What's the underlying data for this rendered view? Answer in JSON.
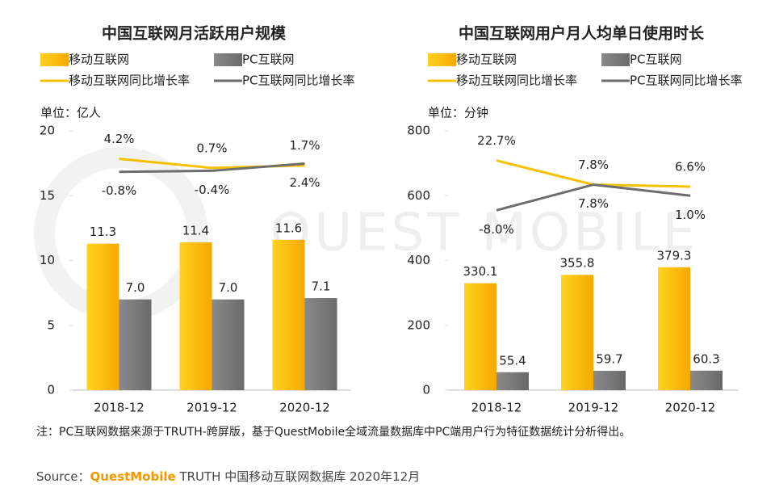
{
  "chart_data": [
    {
      "type": "bar",
      "title": "中国互联网月活跃用户规模",
      "unit": "单位：亿人",
      "categories": [
        "2018-12",
        "2019-12",
        "2020-12"
      ],
      "ylim": [
        0,
        20
      ],
      "yticks": [
        0,
        5,
        10,
        15,
        20
      ],
      "y2lim": [
        -85,
        15
      ],
      "series": [
        {
          "name": "移动互联网",
          "color": "#f5b800",
          "values": [
            11.3,
            11.4,
            11.6
          ],
          "value_labels": [
            "11.3",
            "11.4",
            "11.6"
          ]
        },
        {
          "name": "PC互联网",
          "color": "#7f7f7f",
          "values": [
            7.0,
            7.0,
            7.1
          ],
          "value_labels": [
            "7.0",
            "7.0",
            "7.1"
          ]
        },
        {
          "name": "移动互联网同比增长率",
          "type": "line",
          "axis": "y2",
          "color": "#f5c000",
          "values": [
            4.2,
            0.7,
            1.7
          ],
          "value_labels": [
            "4.2%",
            "0.7%",
            "1.7%"
          ]
        },
        {
          "name": "PC互联网同比增长率",
          "type": "line",
          "axis": "y2",
          "color": "#6d6d6d",
          "values": [
            -0.8,
            -0.4,
            2.4
          ],
          "value_labels": [
            "-0.8%",
            "-0.4%",
            "2.4%"
          ]
        }
      ]
    },
    {
      "type": "bar",
      "title": "中国互联网用户月人均单日使用时长",
      "unit": "单位：分钟",
      "categories": [
        "2018-12",
        "2019-12",
        "2020-12"
      ],
      "ylim": [
        0,
        800
      ],
      "yticks": [
        0,
        200,
        400,
        600,
        800
      ],
      "y2lim": [
        -119,
        41
      ],
      "series": [
        {
          "name": "移动互联网",
          "color": "#f5b800",
          "values": [
            330.1,
            355.8,
            379.3
          ]
        },
        {
          "name": "PC互联网",
          "color": "#7f7f7f",
          "values": [
            55.4,
            59.7,
            60.3
          ]
        },
        {
          "name": "移动互联网同比增长率",
          "type": "line",
          "axis": "y2",
          "color": "#f5c000",
          "values": [
            22.7,
            7.8,
            6.6
          ],
          "value_labels": [
            "22.7%",
            "7.8%",
            "6.6%"
          ]
        },
        {
          "name": "PC互联网同比增长率",
          "type": "line",
          "axis": "y2",
          "color": "#6d6d6d",
          "values": [
            -8.0,
            7.8,
            1.0
          ],
          "value_labels": [
            "-8.0%",
            "7.8%",
            "1.0%"
          ]
        }
      ]
    }
  ],
  "watermark": "QUEST MOBILE",
  "note": "注：PC互联网数据来源于TRUTH-跨屏版，基于QuestMobile全域流量数据库中PC端用户行为特征数据统计分析得出。",
  "source": {
    "label": "Source：",
    "brand": "QuestMobile",
    "text": "TRUTH 中国移动互联网数据库 2020年12月"
  }
}
